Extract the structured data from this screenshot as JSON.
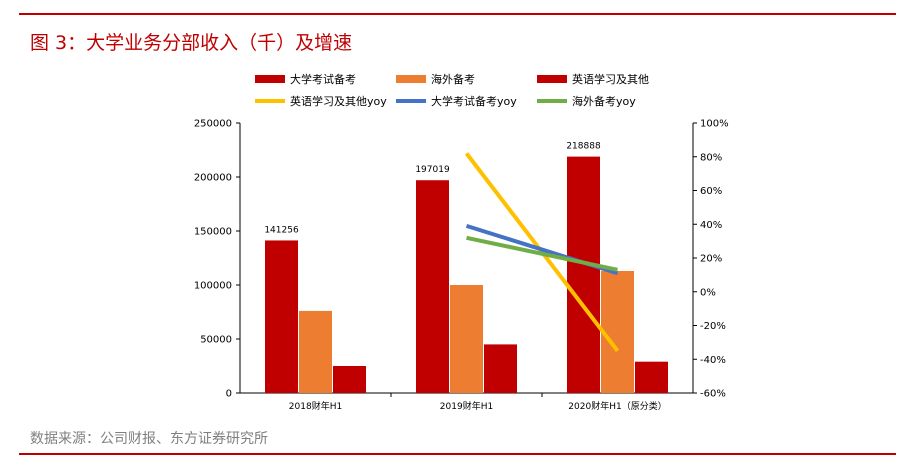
{
  "header": {
    "title": "图 3：大学业务分部收入（千）及增速"
  },
  "footer": {
    "source": "数据来源：公司财报、东方证券研究所"
  },
  "colors": {
    "rule": "#c00000",
    "title": "#c00000"
  },
  "chart_data": {
    "type": "bar",
    "categories": [
      "2018财年H1",
      "2019财年H1",
      "2020财年H1（原分类）"
    ],
    "series": [
      {
        "name": "大学考试备考",
        "kind": "bar",
        "axis": "left",
        "color": "#c00000",
        "values": [
          141256,
          197019,
          218888
        ]
      },
      {
        "name": "海外备考",
        "kind": "bar",
        "axis": "left",
        "color": "#ed7d31",
        "values": [
          76000,
          100000,
          113000
        ]
      },
      {
        "name": "英语学习及其他",
        "kind": "bar",
        "axis": "left",
        "color": "#c00000",
        "values": [
          25000,
          45000,
          29000
        ]
      },
      {
        "name": "英语学习及其他yoy",
        "kind": "line",
        "axis": "right",
        "color": "#ffc000",
        "values": [
          null,
          0.82,
          -0.35
        ]
      },
      {
        "name": "大学考试备考yoy",
        "kind": "line",
        "axis": "right",
        "color": "#4472c4",
        "values": [
          null,
          0.39,
          0.11
        ]
      },
      {
        "name": "海外备考yoy",
        "kind": "line",
        "axis": "right",
        "color": "#70ad47",
        "values": [
          null,
          0.32,
          0.13
        ]
      }
    ],
    "data_labels": [
      "141256",
      "197019",
      "218888"
    ],
    "left_axis": {
      "min": 0,
      "max": 250000,
      "ticks": [
        "0",
        "50000",
        "100000",
        "150000",
        "200000",
        "250000"
      ]
    },
    "right_axis": {
      "min": -0.6,
      "max": 1.0,
      "ticks": [
        "-60%",
        "-40%",
        "-20%",
        "0%",
        "20%",
        "40%",
        "60%",
        "80%",
        "100%"
      ]
    },
    "legend_position": "top"
  }
}
